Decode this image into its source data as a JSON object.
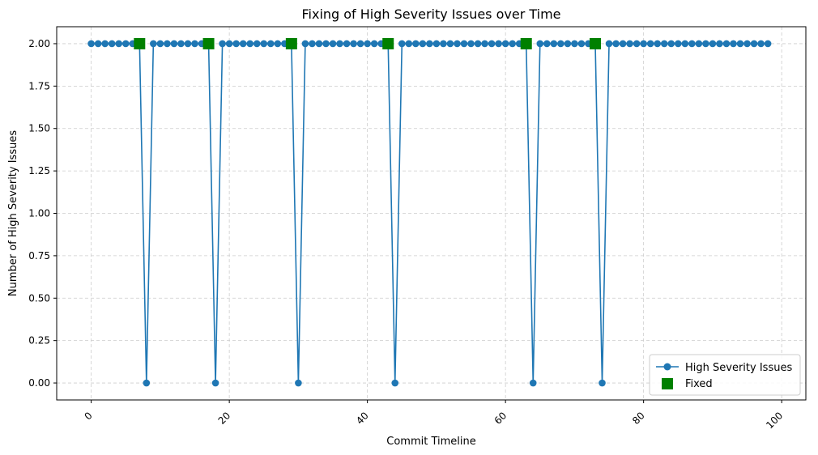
{
  "chart_data": {
    "type": "line",
    "title": "Fixing of High Severity Issues over Time",
    "xlabel": "Commit Timeline",
    "ylabel": "Number of High Severity Issues",
    "xlim": [
      -5,
      103.5
    ],
    "ylim": [
      -0.1,
      2.1
    ],
    "x_ticks": [
      0,
      20,
      40,
      60,
      80,
      100
    ],
    "x_tick_labels": [
      "0",
      "20",
      "40",
      "60",
      "80",
      "100"
    ],
    "y_ticks": [
      0,
      0.25,
      0.5,
      0.75,
      1.0,
      1.25,
      1.5,
      1.75,
      2.0
    ],
    "y_tick_labels": [
      "0.00",
      "0.25",
      "0.50",
      "0.75",
      "1.00",
      "1.25",
      "1.50",
      "1.75",
      "2.00"
    ],
    "grid": true,
    "legend_position": "lower-right",
    "series": [
      {
        "name": "High Severity Issues",
        "color": "#1f77b4",
        "marker": "circle",
        "x_start": 0,
        "x_end": 98,
        "default_value": 2,
        "zero_points": [
          8,
          18,
          30,
          44,
          64,
          74
        ]
      }
    ],
    "fixed_markers": {
      "name": "Fixed",
      "color": "#008000",
      "marker": "square",
      "x": [
        7,
        17,
        29,
        43,
        63,
        73
      ],
      "y": [
        2,
        2,
        2,
        2,
        2,
        2
      ]
    }
  }
}
